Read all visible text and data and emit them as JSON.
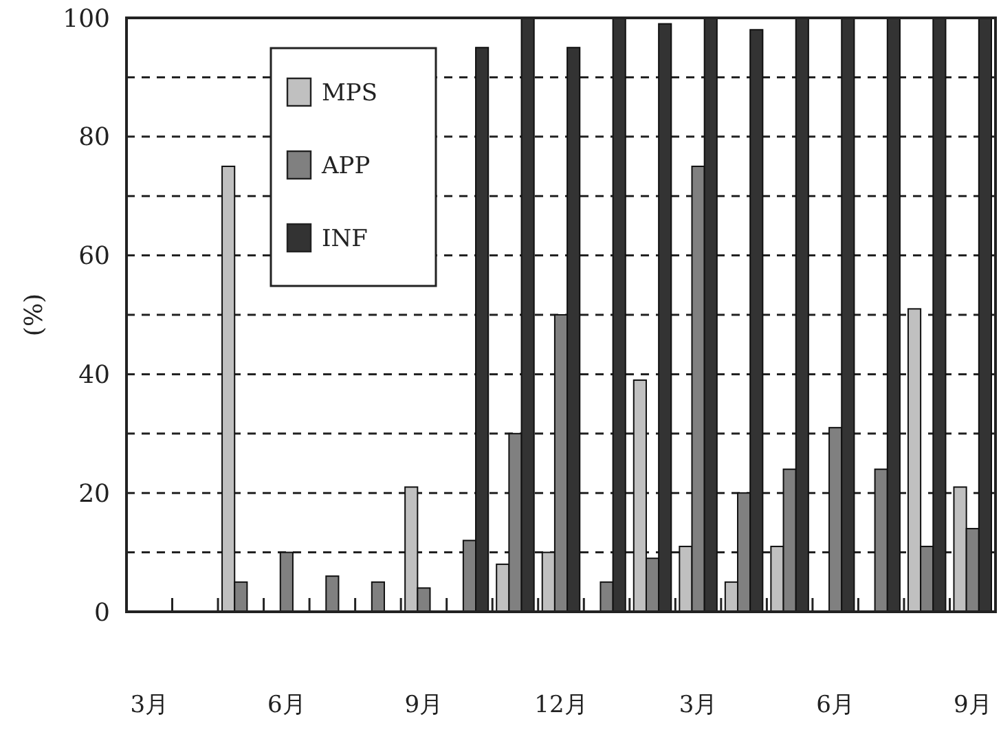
{
  "chart_data": {
    "type": "bar",
    "ylabel": "(%)",
    "categories": [
      "3月",
      null,
      null,
      "6月",
      null,
      null,
      "9月",
      null,
      null,
      "12月",
      null,
      null,
      "3月",
      null,
      null,
      "6月",
      null,
      null,
      "9月"
    ],
    "series": [
      {
        "name": "MPS",
        "color": "#c0c0c0",
        "values": [
          null,
          null,
          75,
          null,
          null,
          null,
          21,
          null,
          8,
          10,
          null,
          39,
          11,
          5,
          11,
          null,
          null,
          51,
          21
        ]
      },
      {
        "name": "APP",
        "color": "#808080",
        "values": [
          null,
          null,
          5,
          10,
          6,
          5,
          4,
          12,
          30,
          50,
          5,
          9,
          75,
          20,
          24,
          31,
          24,
          11,
          14
        ]
      },
      {
        "name": "INF",
        "color": "#333333",
        "values": [
          null,
          null,
          null,
          null,
          null,
          null,
          null,
          95,
          100,
          95,
          100,
          99,
          100,
          98,
          100,
          100,
          100,
          100,
          100
        ]
      }
    ],
    "ylim": [
      0,
      100
    ],
    "yticks": [
      0,
      {
        "value": 10,
        "label": null
      },
      20,
      {
        "value": 30,
        "label": null
      },
      40,
      {
        "value": 50,
        "label": null
      },
      60,
      {
        "value": 70,
        "label": null
      },
      80,
      {
        "value": 90,
        "label": null
      },
      100
    ],
    "grid": "y",
    "legend": "top left"
  }
}
